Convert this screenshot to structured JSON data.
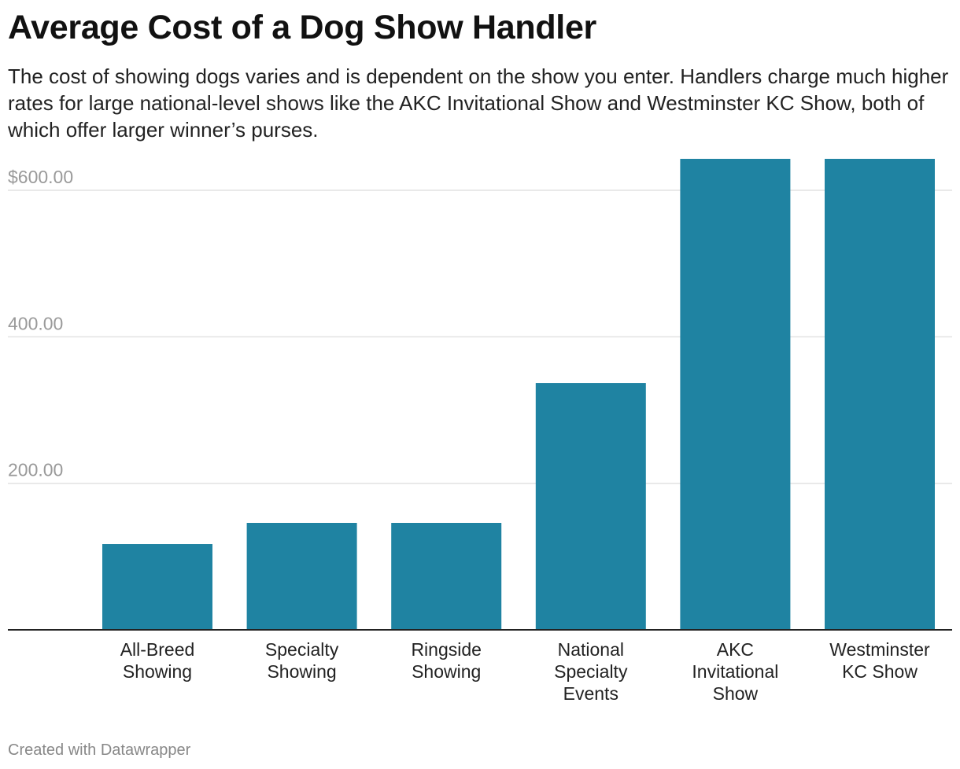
{
  "header": {
    "title": "Average Cost of a Dog Show Handler",
    "subtitle": "The cost of showing dogs varies and is dependent on the show you enter. Handlers charge much higher rates for large national-level shows like the AKC Invitational Show and Westminster KC Show, both of which offer larger winner’s purses."
  },
  "footer": {
    "credit": "Created with Datawrapper"
  },
  "chart_data": {
    "type": "bar",
    "title": "Average Cost of a Dog Show Handler",
    "xlabel": "",
    "ylabel": "",
    "categories": [
      [
        "All-Breed",
        "Showing"
      ],
      [
        "Specialty",
        "Showing"
      ],
      [
        "Ringside",
        "Showing"
      ],
      [
        "National",
        "Specialty",
        "Events"
      ],
      [
        "AKC",
        "Invitational",
        "Show"
      ],
      [
        "Westminster",
        "KC Show"
      ]
    ],
    "values": [
      117,
      146,
      146,
      337,
      643,
      643
    ],
    "ylim": [
      0,
      643
    ],
    "yticks": [
      {
        "value": 200,
        "label": "200.00"
      },
      {
        "value": 400,
        "label": "400.00"
      },
      {
        "value": 600,
        "label": "$600.00"
      }
    ],
    "grid": true,
    "legend": "none",
    "bar_color": "#1f83a2",
    "grid_color": "#e2e2e2",
    "baseline_color": "#222222"
  }
}
